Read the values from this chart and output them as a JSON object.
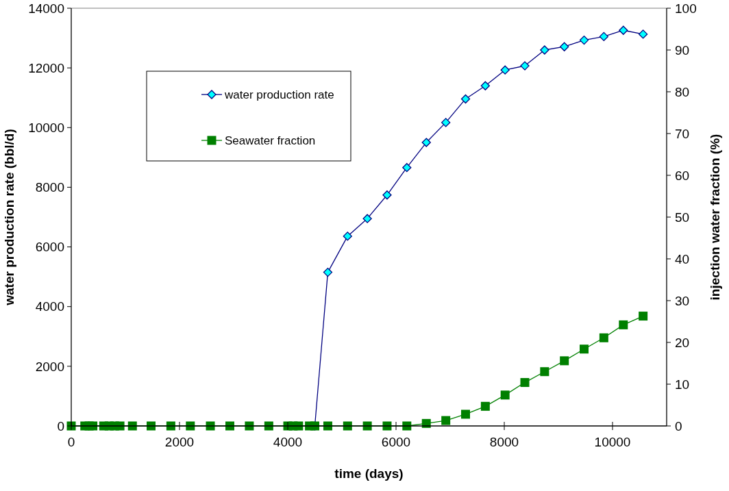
{
  "chart_data": {
    "type": "line",
    "xlabel": "time (days)",
    "ylabel": "water production rate (bbl/d)",
    "y2label": "injection water fraction (%)",
    "x": [
      0,
      250,
      330,
      400,
      600,
      700,
      800,
      900,
      1130,
      1475,
      1840,
      2200,
      2570,
      2930,
      3290,
      3650,
      4000,
      4100,
      4200,
      4400,
      4500,
      4740,
      5105,
      5470,
      5835,
      6200,
      6560,
      6920,
      7285,
      7650,
      8015,
      8380,
      8745,
      9110,
      9475,
      9840,
      10200,
      10565
    ],
    "series": [
      {
        "name": "water production rate",
        "color": "#000080",
        "marker": "diamond",
        "values": [
          null,
          null,
          null,
          null,
          null,
          null,
          null,
          null,
          null,
          null,
          null,
          null,
          null,
          null,
          null,
          null,
          null,
          null,
          null,
          null,
          0,
          5150,
          6360,
          6950,
          7740,
          8660,
          9500,
          10170,
          10960,
          11400,
          11930,
          12070,
          12600,
          12710,
          12930,
          13050,
          13260,
          13130
        ]
      },
      {
        "name": "Seawater fraction",
        "color": "#008000",
        "marker": "square",
        "axis": "y2",
        "values": [
          0,
          0,
          0,
          0,
          0,
          0,
          0,
          0,
          0,
          0,
          0,
          0,
          0,
          0,
          0,
          0,
          0,
          0,
          0,
          0,
          0,
          0,
          0,
          0,
          0,
          0,
          0.6,
          1.3,
          2.8,
          4.7,
          7.4,
          10.4,
          13,
          15.6,
          18.4,
          21.1,
          24.2,
          26.3
        ]
      }
    ],
    "xlim": [
      0,
      11000
    ],
    "xticks": [
      0,
      2000,
      4000,
      6000,
      8000,
      10000
    ],
    "ylim": [
      0,
      14000
    ],
    "yticks": [
      0,
      2000,
      4000,
      6000,
      8000,
      10000,
      12000,
      14000
    ],
    "y2lim": [
      0,
      100
    ],
    "y2ticks": [
      0,
      10,
      20,
      30,
      40,
      50,
      60,
      70,
      80,
      90,
      100
    ],
    "grid": false,
    "legend": "top left"
  }
}
